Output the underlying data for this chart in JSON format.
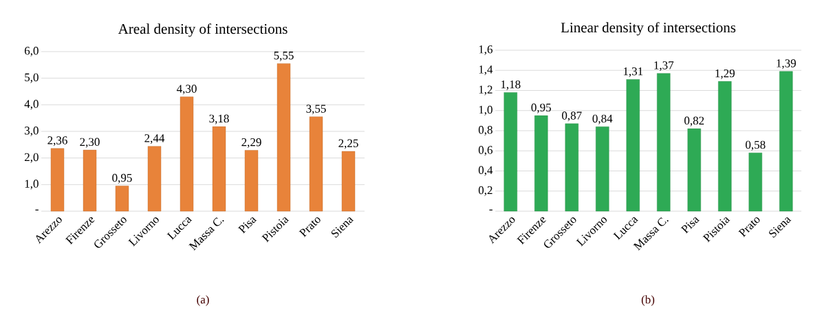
{
  "chart_data": [
    {
      "type": "bar",
      "title": "Areal density of intersections",
      "categories": [
        "Arezzo",
        "Firenze",
        "Grosseto",
        "Livorno",
        "Lucca",
        "Massa C.",
        "Pisa",
        "Pistoia",
        "Prato",
        "Siena"
      ],
      "values": [
        2.36,
        2.3,
        0.95,
        2.44,
        4.3,
        3.18,
        2.29,
        5.55,
        3.55,
        2.25
      ],
      "value_labels": [
        "2,36",
        "2,30",
        "0,95",
        "2,44",
        "4,30",
        "3,18",
        "2,29",
        "5,55",
        "3,55",
        "2,25"
      ],
      "color": "#e8833a",
      "ylim": [
        0,
        6.0
      ],
      "yticks": [
        {
          "value": 0,
          "label": "-"
        },
        {
          "value": 1,
          "label": "1,0"
        },
        {
          "value": 2,
          "label": "2,0"
        },
        {
          "value": 3,
          "label": "3,0"
        },
        {
          "value": 4,
          "label": "4,0"
        },
        {
          "value": 5,
          "label": "5,0"
        },
        {
          "value": 6,
          "label": "6,0"
        }
      ],
      "grid": "y",
      "annotations": [
        "(a)"
      ]
    },
    {
      "type": "bar",
      "title": "Linear density of intersections",
      "categories": [
        "Arezzo",
        "Firenze",
        "Grosseto",
        "Livorno",
        "Lucca",
        "Massa C.",
        "Pisa",
        "Pistoia",
        "Prato",
        "Siena"
      ],
      "values": [
        1.18,
        0.95,
        0.87,
        0.84,
        1.31,
        1.37,
        0.82,
        1.29,
        0.58,
        1.39
      ],
      "value_labels": [
        "1,18",
        "0,95",
        "0,87",
        "0,84",
        "1,31",
        "1,37",
        "0,82",
        "1,29",
        "0,58",
        "1,39"
      ],
      "color": "#2eaa55",
      "ylim": [
        0,
        1.6
      ],
      "yticks": [
        {
          "value": 0,
          "label": "-"
        },
        {
          "value": 0.2,
          "label": "0,2"
        },
        {
          "value": 0.4,
          "label": "0,4"
        },
        {
          "value": 0.6,
          "label": "0,6"
        },
        {
          "value": 0.8,
          "label": "0,8"
        },
        {
          "value": 1.0,
          "label": "1,0"
        },
        {
          "value": 1.2,
          "label": "1,2"
        },
        {
          "value": 1.4,
          "label": "1,4"
        },
        {
          "value": 1.6,
          "label": "1,6"
        }
      ],
      "grid": "y",
      "annotations": [
        "(b)"
      ]
    }
  ]
}
